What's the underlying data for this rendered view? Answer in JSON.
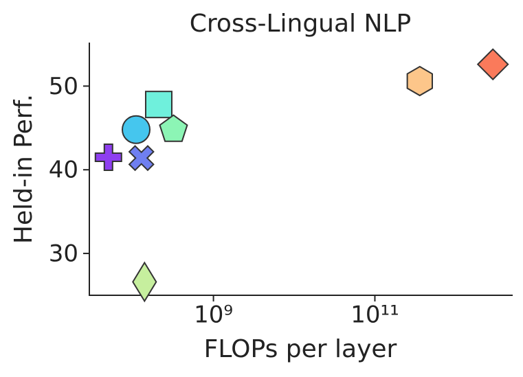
{
  "chart_data": {
    "type": "scatter",
    "title": "Cross-Lingual NLP",
    "x_label": "FLOPs per layer",
    "y_label": "Held-in Perf.",
    "x_scale": "log",
    "xlim": [
      29000000,
      5000000000000
    ],
    "ylim": [
      25,
      55.2
    ],
    "xticks": [
      {
        "value": 1000000000,
        "label": "10⁹"
      },
      {
        "value": 100000000000,
        "label": "10¹¹"
      }
    ],
    "yticks": [
      30,
      40,
      50
    ],
    "points": [
      {
        "x": 50000000,
        "y": 41.5,
        "color": "#8e3ff0",
        "marker": "plus"
      },
      {
        "x": 128000000,
        "y": 41.4,
        "color": "#6f7ff0",
        "marker": "cross"
      },
      {
        "x": 110000000,
        "y": 44.8,
        "color": "#45c6ee",
        "marker": "circle"
      },
      {
        "x": 210000000,
        "y": 47.8,
        "color": "#6ff0dc",
        "marker": "square"
      },
      {
        "x": 320000000,
        "y": 44.8,
        "color": "#8cf5b5",
        "marker": "pentagon"
      },
      {
        "x": 140000000,
        "y": 26.6,
        "color": "#c6ef9e",
        "marker": "thin_diamond"
      },
      {
        "x": 360000000000,
        "y": 50.6,
        "color": "#fdc68a",
        "marker": "hexagon"
      },
      {
        "x": 2900000000000,
        "y": 52.6,
        "color": "#fa7a5b",
        "marker": "diamond"
      }
    ]
  }
}
